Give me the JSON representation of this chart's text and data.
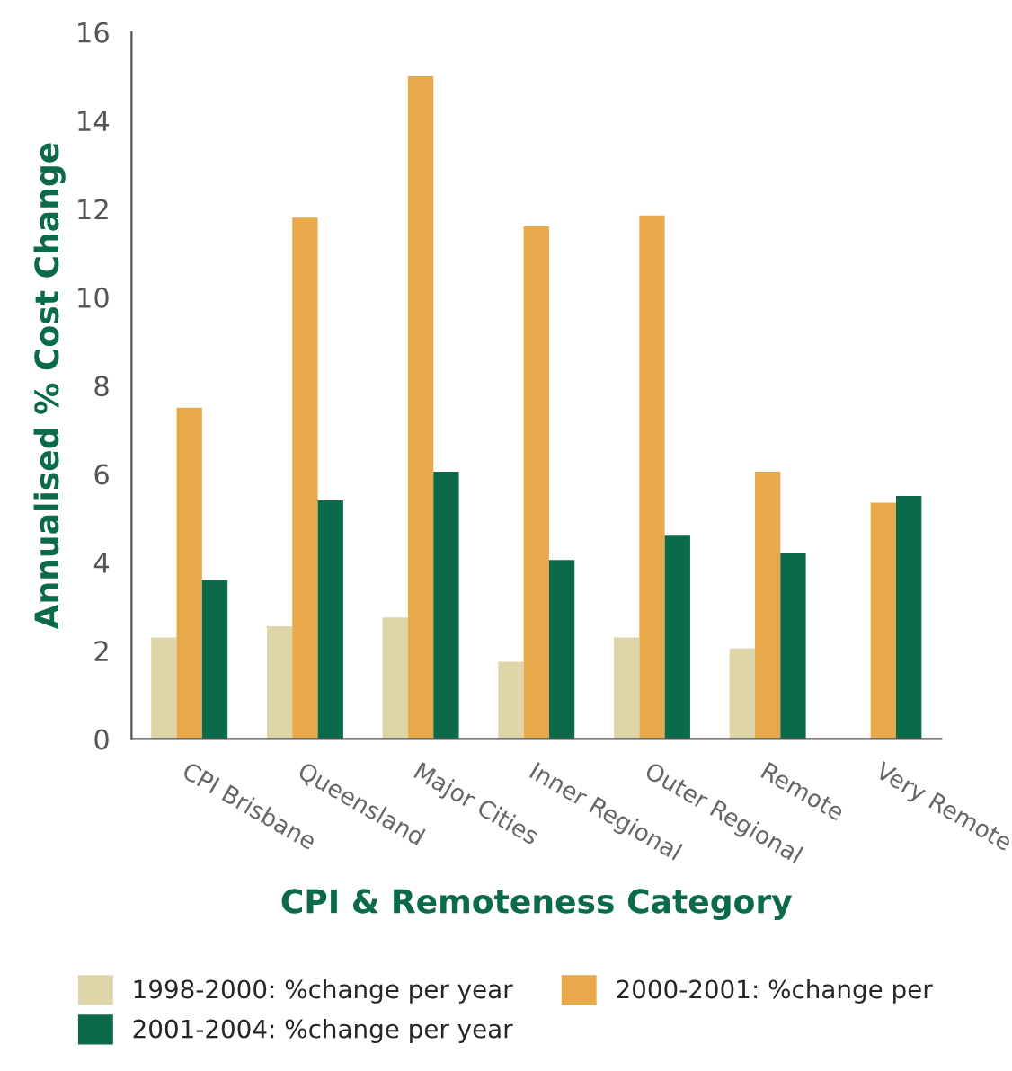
{
  "chart_data": {
    "type": "bar",
    "xlabel": "CPI & Remoteness Category",
    "ylabel": "Annualised % Cost Change",
    "categories": [
      "CPI Brisbane",
      "Queensland",
      "Major Cities",
      "Inner Regional",
      "Outer Regional",
      "Remote",
      "Very Remote"
    ],
    "series": [
      {
        "name": "1998-2000: %change per year",
        "color": "#ddd5a8",
        "values": [
          2.3,
          2.55,
          2.75,
          1.75,
          2.3,
          2.05,
          null
        ]
      },
      {
        "name": "2000-2001: %change per",
        "color": "#e8a94a",
        "values": [
          7.5,
          11.8,
          15.0,
          11.6,
          11.85,
          6.05,
          5.35
        ]
      },
      {
        "name": "2001-2004: %change per year",
        "color": "#0a6a4a",
        "values": [
          3.6,
          5.4,
          6.05,
          4.05,
          4.6,
          4.2,
          5.5
        ]
      }
    ],
    "ylim": [
      0,
      16
    ],
    "yticks": [
      0,
      2,
      4,
      6,
      8,
      10,
      12,
      14,
      16
    ],
    "grid": false,
    "legend": "bottom"
  }
}
